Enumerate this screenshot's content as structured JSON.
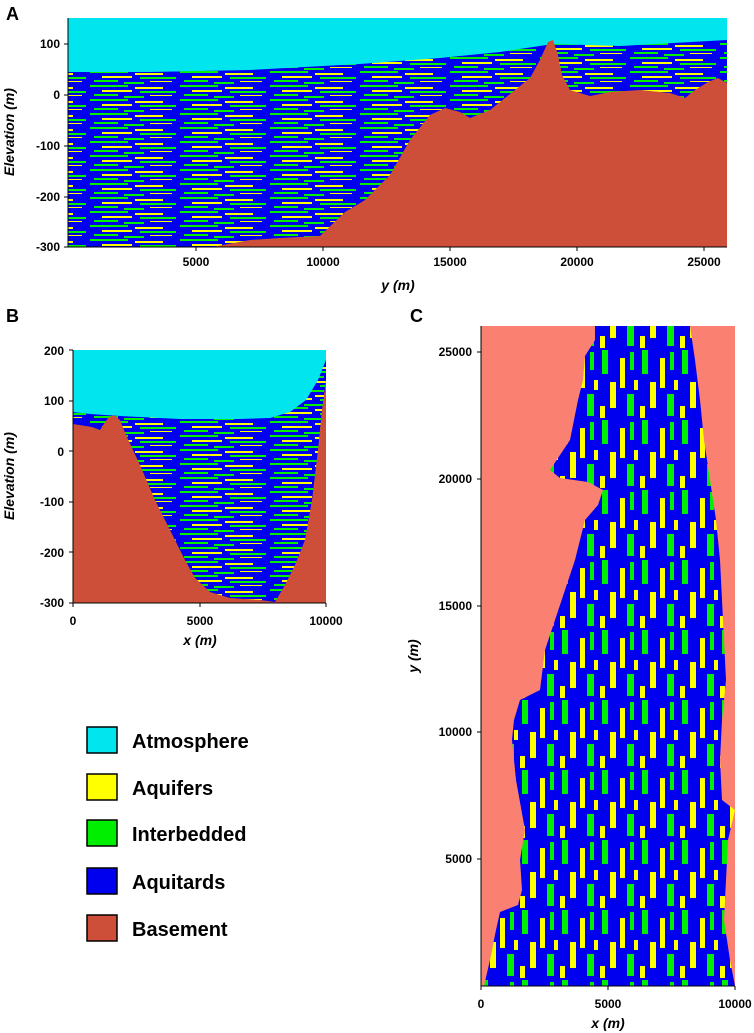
{
  "panels": [
    {
      "letter": "A",
      "xlabel": "y (m)",
      "ylabel": "Elevation (m)",
      "xticks": [
        "5000",
        "10000",
        "15000",
        "20000",
        "25000"
      ],
      "yticks": [
        "100",
        "0",
        "-100",
        "-200",
        "-300"
      ]
    },
    {
      "letter": "B",
      "xlabel": "x (m)",
      "ylabel": "Elevation (m)",
      "xticks": [
        "0",
        "5000",
        "10000"
      ],
      "yticks": [
        "200",
        "100",
        "0",
        "-100",
        "-200",
        "-300"
      ]
    },
    {
      "letter": "C",
      "xlabel": "x (m)",
      "ylabel": "y (m)",
      "xticks": [
        "0",
        "5000",
        "10000"
      ],
      "yticks": [
        "25000",
        "20000",
        "15000",
        "10000",
        "5000"
      ]
    }
  ],
  "legend": [
    {
      "label": "Atmosphere",
      "color": "#00E5EE"
    },
    {
      "label": "Aquifers",
      "color": "#FFFF00"
    },
    {
      "label": "Interbedded",
      "color": "#00EE00"
    },
    {
      "label": "Aquitards",
      "color": "#0000EE"
    },
    {
      "label": "Basement",
      "color": "#CD4F39"
    }
  ],
  "colors": {
    "atmosphere": "#00E5EE",
    "aquifers": "#FFFF00",
    "interbedded": "#00EE00",
    "aquitards": "#0000EE",
    "basement": "#CD4F39",
    "basement_map": "#FA8072"
  },
  "chart_data": [
    {
      "type": "heatmap",
      "panel": "A",
      "xlabel": "y (m)",
      "ylabel": "Elevation (m)",
      "xlim": [
        0,
        26000
      ],
      "ylim": [
        -300,
        150
      ],
      "categories": [
        "Atmosphere",
        "Aquifers",
        "Interbedded",
        "Aquitards",
        "Basement"
      ]
    },
    {
      "type": "heatmap",
      "panel": "B",
      "xlabel": "x (m)",
      "ylabel": "Elevation (m)",
      "xlim": [
        0,
        10000
      ],
      "ylim": [
        -300,
        200
      ],
      "categories": [
        "Atmosphere",
        "Aquifers",
        "Interbedded",
        "Aquitards",
        "Basement"
      ]
    },
    {
      "type": "heatmap",
      "panel": "C",
      "xlabel": "x (m)",
      "ylabel": "y (m)",
      "xlim": [
        0,
        10000
      ],
      "ylim": [
        0,
        26000
      ],
      "categories": [
        "Aquifers",
        "Interbedded",
        "Aquitards",
        "Basement"
      ]
    }
  ]
}
